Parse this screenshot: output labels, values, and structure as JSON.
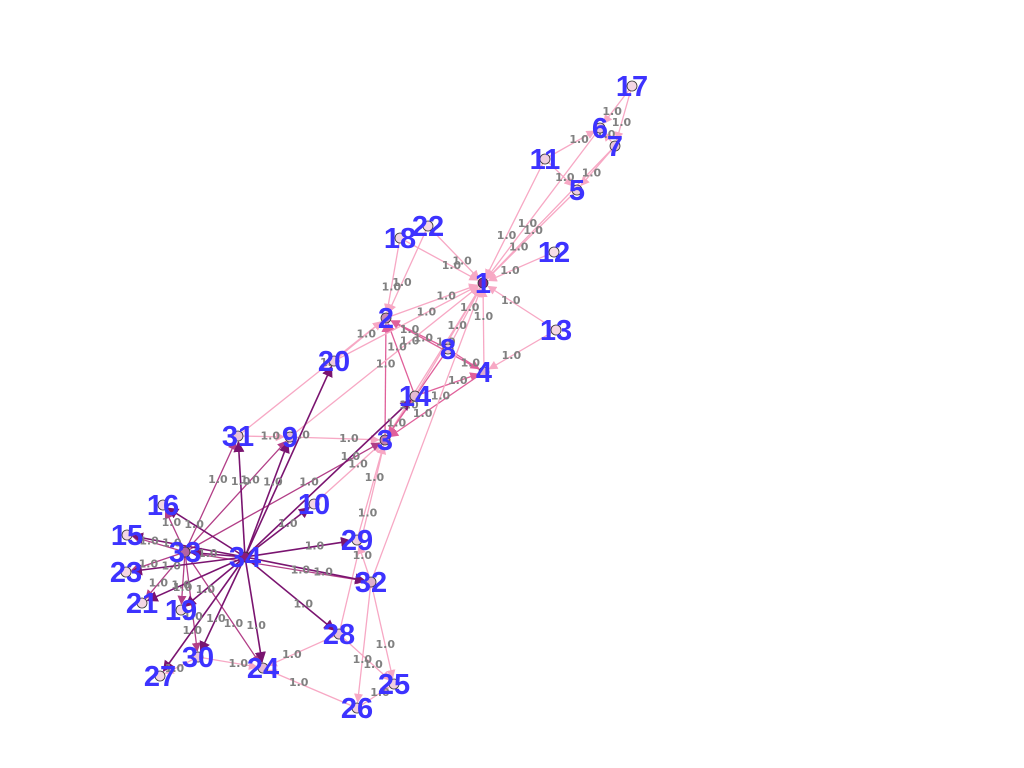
{
  "graph": {
    "colors": {
      "edge_light": "#f7a8c4",
      "edge_mid": "#e0609a",
      "edge_dark": "#7a1470",
      "node_light": "#fbe3ea",
      "node_dark": "#8a1a78",
      "label": "#3d33ff",
      "edge_label": "#808080"
    },
    "nodes": [
      {
        "id": "1"
      },
      {
        "id": "2"
      },
      {
        "id": "3"
      },
      {
        "id": "4"
      },
      {
        "id": "5"
      },
      {
        "id": "6"
      },
      {
        "id": "7"
      },
      {
        "id": "8"
      },
      {
        "id": "9"
      },
      {
        "id": "10"
      },
      {
        "id": "11"
      },
      {
        "id": "12"
      },
      {
        "id": "13"
      },
      {
        "id": "14"
      },
      {
        "id": "15"
      },
      {
        "id": "16"
      },
      {
        "id": "17"
      },
      {
        "id": "18"
      },
      {
        "id": "19"
      },
      {
        "id": "20"
      },
      {
        "id": "21"
      },
      {
        "id": "22"
      },
      {
        "id": "23"
      },
      {
        "id": "24"
      },
      {
        "id": "25"
      },
      {
        "id": "26"
      },
      {
        "id": "27"
      },
      {
        "id": "28"
      },
      {
        "id": "29"
      },
      {
        "id": "30"
      },
      {
        "id": "31"
      },
      {
        "id": "32"
      },
      {
        "id": "33"
      },
      {
        "id": "34"
      }
    ],
    "edges": [
      {
        "source": "2",
        "target": "1",
        "weight": "1.0"
      },
      {
        "source": "3",
        "target": "1",
        "weight": "1.0"
      },
      {
        "source": "3",
        "target": "2",
        "weight": "1.0"
      },
      {
        "source": "4",
        "target": "1",
        "weight": "1.0"
      },
      {
        "source": "4",
        "target": "2",
        "weight": "1.0"
      },
      {
        "source": "4",
        "target": "3",
        "weight": "1.0"
      },
      {
        "source": "5",
        "target": "1",
        "weight": "1.0"
      },
      {
        "source": "6",
        "target": "1",
        "weight": "1.0"
      },
      {
        "source": "7",
        "target": "1",
        "weight": "1.0"
      },
      {
        "source": "7",
        "target": "5",
        "weight": "1.0"
      },
      {
        "source": "7",
        "target": "6",
        "weight": "1.0"
      },
      {
        "source": "8",
        "target": "1",
        "weight": "1.0"
      },
      {
        "source": "8",
        "target": "2",
        "weight": "1.0"
      },
      {
        "source": "8",
        "target": "3",
        "weight": "1.0"
      },
      {
        "source": "8",
        "target": "4",
        "weight": "1.0"
      },
      {
        "source": "9",
        "target": "1",
        "weight": "1.0"
      },
      {
        "source": "9",
        "target": "3",
        "weight": "1.0"
      },
      {
        "source": "10",
        "target": "3",
        "weight": "1.0"
      },
      {
        "source": "11",
        "target": "1",
        "weight": "1.0"
      },
      {
        "source": "11",
        "target": "5",
        "weight": "1.0"
      },
      {
        "source": "11",
        "target": "6",
        "weight": "1.0"
      },
      {
        "source": "12",
        "target": "1",
        "weight": "1.0"
      },
      {
        "source": "13",
        "target": "1",
        "weight": "1.0"
      },
      {
        "source": "13",
        "target": "4",
        "weight": "1.0"
      },
      {
        "source": "14",
        "target": "1",
        "weight": "1.0"
      },
      {
        "source": "14",
        "target": "2",
        "weight": "1.0"
      },
      {
        "source": "14",
        "target": "3",
        "weight": "1.0"
      },
      {
        "source": "14",
        "target": "4",
        "weight": "1.0"
      },
      {
        "source": "17",
        "target": "6",
        "weight": "1.0"
      },
      {
        "source": "17",
        "target": "7",
        "weight": "1.0"
      },
      {
        "source": "18",
        "target": "1",
        "weight": "1.0"
      },
      {
        "source": "18",
        "target": "2",
        "weight": "1.0"
      },
      {
        "source": "20",
        "target": "1",
        "weight": "1.0"
      },
      {
        "source": "20",
        "target": "2",
        "weight": "1.0"
      },
      {
        "source": "22",
        "target": "1",
        "weight": "1.0"
      },
      {
        "source": "22",
        "target": "2",
        "weight": "1.0"
      },
      {
        "source": "26",
        "target": "24",
        "weight": "1.0"
      },
      {
        "source": "26",
        "target": "25",
        "weight": "1.0"
      },
      {
        "source": "28",
        "target": "3",
        "weight": "1.0"
      },
      {
        "source": "28",
        "target": "24",
        "weight": "1.0"
      },
      {
        "source": "28",
        "target": "25",
        "weight": "1.0"
      },
      {
        "source": "29",
        "target": "3",
        "weight": "1.0"
      },
      {
        "source": "30",
        "target": "24",
        "weight": "1.0"
      },
      {
        "source": "30",
        "target": "27",
        "weight": "1.0"
      },
      {
        "source": "31",
        "target": "2",
        "weight": "1.0"
      },
      {
        "source": "31",
        "target": "9",
        "weight": "1.0"
      },
      {
        "source": "32",
        "target": "1",
        "weight": "1.0"
      },
      {
        "source": "32",
        "target": "25",
        "weight": "1.0"
      },
      {
        "source": "32",
        "target": "26",
        "weight": "1.0"
      },
      {
        "source": "32",
        "target": "29",
        "weight": "1.0"
      },
      {
        "source": "33",
        "target": "3",
        "weight": "1.0"
      },
      {
        "source": "33",
        "target": "9",
        "weight": "1.0"
      },
      {
        "source": "33",
        "target": "15",
        "weight": "1.0"
      },
      {
        "source": "33",
        "target": "16",
        "weight": "1.0"
      },
      {
        "source": "33",
        "target": "19",
        "weight": "1.0"
      },
      {
        "source": "33",
        "target": "21",
        "weight": "1.0"
      },
      {
        "source": "33",
        "target": "23",
        "weight": "1.0"
      },
      {
        "source": "33",
        "target": "24",
        "weight": "1.0"
      },
      {
        "source": "33",
        "target": "30",
        "weight": "1.0"
      },
      {
        "source": "33",
        "target": "31",
        "weight": "1.0"
      },
      {
        "source": "33",
        "target": "32",
        "weight": "1.0"
      },
      {
        "source": "34",
        "target": "9",
        "weight": "1.0"
      },
      {
        "source": "34",
        "target": "10",
        "weight": "1.0"
      },
      {
        "source": "34",
        "target": "14",
        "weight": "1.0"
      },
      {
        "source": "34",
        "target": "15",
        "weight": "1.0"
      },
      {
        "source": "34",
        "target": "16",
        "weight": "1.0"
      },
      {
        "source": "34",
        "target": "19",
        "weight": "1.0"
      },
      {
        "source": "34",
        "target": "20",
        "weight": "1.0"
      },
      {
        "source": "34",
        "target": "21",
        "weight": "1.0"
      },
      {
        "source": "34",
        "target": "23",
        "weight": "1.0"
      },
      {
        "source": "34",
        "target": "24",
        "weight": "1.0"
      },
      {
        "source": "34",
        "target": "27",
        "weight": "1.0"
      },
      {
        "source": "34",
        "target": "28",
        "weight": "1.0"
      },
      {
        "source": "34",
        "target": "29",
        "weight": "1.0"
      },
      {
        "source": "34",
        "target": "30",
        "weight": "1.0"
      },
      {
        "source": "34",
        "target": "31",
        "weight": "1.0"
      },
      {
        "source": "34",
        "target": "32",
        "weight": "1.0"
      },
      {
        "source": "34",
        "target": "33",
        "weight": "1.0"
      }
    ]
  }
}
